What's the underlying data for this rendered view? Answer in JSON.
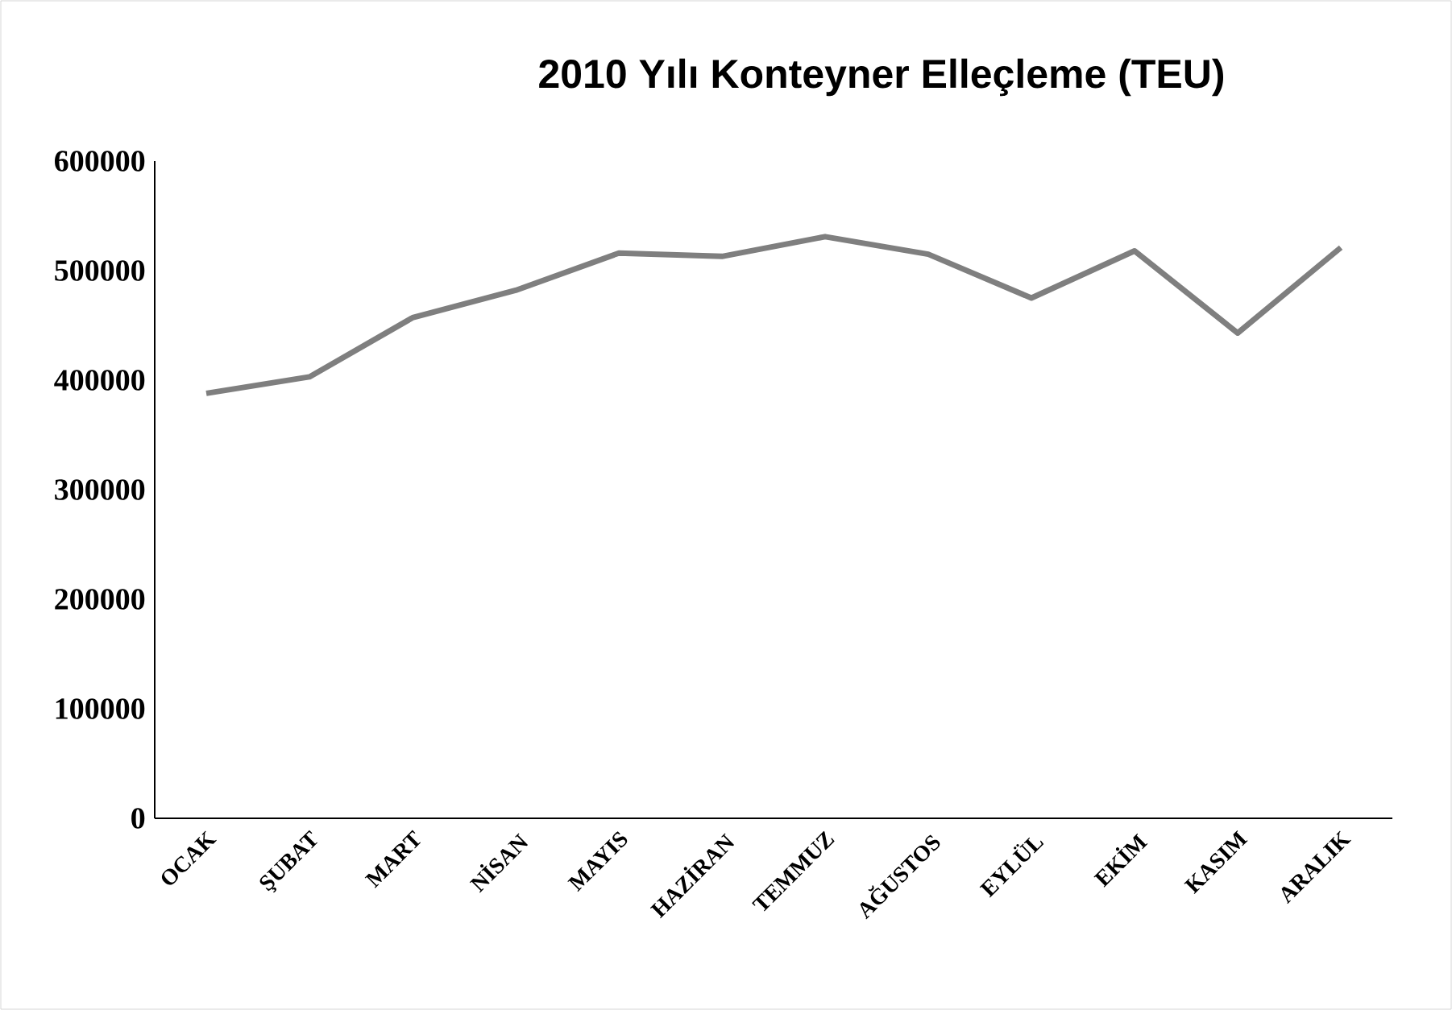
{
  "chart_data": {
    "type": "line",
    "title": "2010 Yılı Konteyner Elleçleme (TEU)",
    "categories": [
      "OCAK",
      "ŞUBAT",
      "MART",
      "NİSAN",
      "MAYIS",
      "HAZİRAN",
      "TEMMUZ",
      "AĞUSTOS",
      "EYLÜL",
      "EKİM",
      "KASIM",
      "ARALIK"
    ],
    "values": [
      388000,
      403000,
      457000,
      482000,
      516000,
      513000,
      531000,
      515000,
      475000,
      518000,
      443000,
      521000
    ],
    "color": "#7f7f7f",
    "ylim": [
      0,
      600000
    ],
    "yticks": [
      0,
      100000,
      200000,
      300000,
      400000,
      500000,
      600000
    ],
    "grid": false,
    "marker": "none",
    "line_style": "solid"
  }
}
